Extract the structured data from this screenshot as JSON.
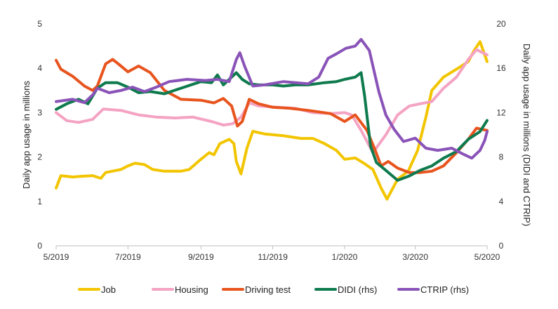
{
  "chart_data": {
    "type": "line",
    "xlabel": "",
    "ylabel": "Daily app usage in millions",
    "y2label": "Daily app usage in millions (DIDI and CTRIP)",
    "ylim": [
      0,
      5
    ],
    "y2lim": [
      0,
      20
    ],
    "xlim": [
      "2019-05-01",
      "2020-05-01"
    ],
    "yticks": [
      "0",
      "1",
      "2",
      "3",
      "4",
      "5"
    ],
    "y2ticks": [
      "0",
      "4",
      "8",
      "12",
      "16",
      "20"
    ],
    "xticks": [
      {
        "label": "5/2019",
        "date": "2019-05-01"
      },
      {
        "label": "7/2019",
        "date": "2019-07-01"
      },
      {
        "label": "9/2019",
        "date": "2019-09-01"
      },
      {
        "label": "11/2019",
        "date": "2019-11-01"
      },
      {
        "label": "1/2020",
        "date": "2020-01-01"
      },
      {
        "label": "3/2020",
        "date": "2020-03-01"
      },
      {
        "label": "5/2020",
        "date": "2020-05-01"
      }
    ],
    "legend_position": "bottom",
    "grid": false,
    "series": [
      {
        "name": "Job",
        "axis": "left",
        "color": "#F2C500",
        "points": [
          [
            "2019-05-01",
            1.3
          ],
          [
            "2019-05-05",
            1.58
          ],
          [
            "2019-05-15",
            1.55
          ],
          [
            "2019-05-25",
            1.57
          ],
          [
            "2019-06-01",
            1.58
          ],
          [
            "2019-06-08",
            1.52
          ],
          [
            "2019-06-12",
            1.65
          ],
          [
            "2019-06-25",
            1.72
          ],
          [
            "2019-07-01",
            1.8
          ],
          [
            "2019-07-07",
            1.86
          ],
          [
            "2019-07-15",
            1.83
          ],
          [
            "2019-07-22",
            1.72
          ],
          [
            "2019-08-01",
            1.68
          ],
          [
            "2019-08-15",
            1.68
          ],
          [
            "2019-08-22",
            1.72
          ],
          [
            "2019-09-01",
            1.95
          ],
          [
            "2019-09-08",
            2.1
          ],
          [
            "2019-09-12",
            2.05
          ],
          [
            "2019-09-17",
            2.3
          ],
          [
            "2019-09-25",
            2.4
          ],
          [
            "2019-09-29",
            2.3
          ],
          [
            "2019-10-01",
            1.9
          ],
          [
            "2019-10-05",
            1.62
          ],
          [
            "2019-10-10",
            2.2
          ],
          [
            "2019-10-15",
            2.58
          ],
          [
            "2019-10-25",
            2.52
          ],
          [
            "2019-11-10",
            2.48
          ],
          [
            "2019-11-25",
            2.42
          ],
          [
            "2019-12-05",
            2.42
          ],
          [
            "2019-12-15",
            2.3
          ],
          [
            "2019-12-25",
            2.15
          ],
          [
            "2020-01-01",
            1.95
          ],
          [
            "2020-01-10",
            1.98
          ],
          [
            "2020-01-18",
            1.85
          ],
          [
            "2020-01-25",
            1.72
          ],
          [
            "2020-02-01",
            1.3
          ],
          [
            "2020-02-06",
            1.05
          ],
          [
            "2020-02-15",
            1.5
          ],
          [
            "2020-02-24",
            1.68
          ],
          [
            "2020-03-03",
            2.15
          ],
          [
            "2020-03-10",
            2.9
          ],
          [
            "2020-03-15",
            3.5
          ],
          [
            "2020-03-25",
            3.8
          ],
          [
            "2020-04-05",
            3.98
          ],
          [
            "2020-04-15",
            4.15
          ],
          [
            "2020-04-20",
            4.4
          ],
          [
            "2020-04-25",
            4.6
          ],
          [
            "2020-05-01",
            4.15
          ]
        ]
      },
      {
        "name": "Housing",
        "axis": "left",
        "color": "#F4A3C2",
        "points": [
          [
            "2019-05-01",
            3.0
          ],
          [
            "2019-05-10",
            2.82
          ],
          [
            "2019-05-20",
            2.78
          ],
          [
            "2019-06-01",
            2.85
          ],
          [
            "2019-06-10",
            3.08
          ],
          [
            "2019-06-25",
            3.05
          ],
          [
            "2019-07-10",
            2.95
          ],
          [
            "2019-07-25",
            2.9
          ],
          [
            "2019-08-10",
            2.88
          ],
          [
            "2019-08-25",
            2.9
          ],
          [
            "2019-09-10",
            2.8
          ],
          [
            "2019-09-20",
            2.72
          ],
          [
            "2019-09-28",
            2.75
          ],
          [
            "2019-10-05",
            2.9
          ],
          [
            "2019-10-12",
            3.22
          ],
          [
            "2019-10-20",
            3.15
          ],
          [
            "2019-11-05",
            3.12
          ],
          [
            "2019-11-20",
            3.1
          ],
          [
            "2019-12-05",
            3.0
          ],
          [
            "2019-12-20",
            2.98
          ],
          [
            "2020-01-01",
            3.0
          ],
          [
            "2020-01-07",
            2.95
          ],
          [
            "2020-01-15",
            2.6
          ],
          [
            "2020-01-25",
            2.1
          ],
          [
            "2020-02-05",
            2.5
          ],
          [
            "2020-02-15",
            2.95
          ],
          [
            "2020-02-25",
            3.15
          ],
          [
            "2020-03-05",
            3.2
          ],
          [
            "2020-03-15",
            3.25
          ],
          [
            "2020-03-25",
            3.55
          ],
          [
            "2020-04-05",
            3.8
          ],
          [
            "2020-04-15",
            4.2
          ],
          [
            "2020-04-22",
            4.42
          ],
          [
            "2020-05-01",
            4.3
          ]
        ]
      },
      {
        "name": "Driving test",
        "axis": "left",
        "color": "#E8541E",
        "points": [
          [
            "2019-05-01",
            4.18
          ],
          [
            "2019-05-05",
            3.98
          ],
          [
            "2019-05-15",
            3.82
          ],
          [
            "2019-05-25",
            3.6
          ],
          [
            "2019-06-01",
            3.5
          ],
          [
            "2019-06-05",
            3.6
          ],
          [
            "2019-06-12",
            4.1
          ],
          [
            "2019-06-18",
            4.2
          ],
          [
            "2019-06-25",
            4.05
          ],
          [
            "2019-07-01",
            3.92
          ],
          [
            "2019-07-10",
            4.05
          ],
          [
            "2019-07-20",
            3.9
          ],
          [
            "2019-08-01",
            3.5
          ],
          [
            "2019-08-15",
            3.3
          ],
          [
            "2019-09-01",
            3.28
          ],
          [
            "2019-09-12",
            3.22
          ],
          [
            "2019-09-20",
            3.32
          ],
          [
            "2019-09-27",
            3.15
          ],
          [
            "2019-10-02",
            2.7
          ],
          [
            "2019-10-06",
            2.8
          ],
          [
            "2019-10-12",
            3.3
          ],
          [
            "2019-10-20",
            3.2
          ],
          [
            "2019-11-01",
            3.12
          ],
          [
            "2019-11-15",
            3.1
          ],
          [
            "2019-12-01",
            3.05
          ],
          [
            "2019-12-20",
            2.98
          ],
          [
            "2020-01-01",
            2.8
          ],
          [
            "2020-01-10",
            2.95
          ],
          [
            "2020-01-20",
            2.6
          ],
          [
            "2020-01-27",
            2.15
          ],
          [
            "2020-02-01",
            1.8
          ],
          [
            "2020-02-07",
            1.9
          ],
          [
            "2020-02-15",
            1.75
          ],
          [
            "2020-02-25",
            1.65
          ],
          [
            "2020-03-05",
            1.65
          ],
          [
            "2020-03-15",
            1.68
          ],
          [
            "2020-03-25",
            1.8
          ],
          [
            "2020-04-05",
            2.1
          ],
          [
            "2020-04-15",
            2.4
          ],
          [
            "2020-04-22",
            2.65
          ],
          [
            "2020-05-01",
            2.6
          ]
        ]
      },
      {
        "name": "DIDI (rhs)",
        "axis": "right",
        "color": "#0E7A4D",
        "points": [
          [
            "2019-05-01",
            12.3
          ],
          [
            "2019-05-10",
            12.8
          ],
          [
            "2019-05-20",
            13.2
          ],
          [
            "2019-05-28",
            12.8
          ],
          [
            "2019-06-05",
            14.2
          ],
          [
            "2019-06-12",
            14.7
          ],
          [
            "2019-06-22",
            14.7
          ],
          [
            "2019-07-01",
            14.3
          ],
          [
            "2019-07-10",
            13.8
          ],
          [
            "2019-07-20",
            13.9
          ],
          [
            "2019-08-01",
            13.7
          ],
          [
            "2019-08-15",
            14.2
          ],
          [
            "2019-09-01",
            14.8
          ],
          [
            "2019-09-10",
            14.7
          ],
          [
            "2019-09-15",
            15.4
          ],
          [
            "2019-09-20",
            14.5
          ],
          [
            "2019-09-25",
            15.0
          ],
          [
            "2019-10-01",
            15.6
          ],
          [
            "2019-10-06",
            15.0
          ],
          [
            "2019-10-12",
            14.6
          ],
          [
            "2019-10-20",
            14.5
          ],
          [
            "2019-11-01",
            14.5
          ],
          [
            "2019-11-10",
            14.4
          ],
          [
            "2019-11-20",
            14.5
          ],
          [
            "2019-12-01",
            14.5
          ],
          [
            "2019-12-15",
            14.7
          ],
          [
            "2019-12-25",
            14.8
          ],
          [
            "2020-01-01",
            15.0
          ],
          [
            "2020-01-10",
            15.2
          ],
          [
            "2020-01-15",
            15.6
          ],
          [
            "2020-01-18",
            13.5
          ],
          [
            "2020-01-23",
            9.0
          ],
          [
            "2020-01-28",
            7.5
          ],
          [
            "2020-02-05",
            6.8
          ],
          [
            "2020-02-15",
            5.9
          ],
          [
            "2020-02-25",
            6.3
          ],
          [
            "2020-03-05",
            6.8
          ],
          [
            "2020-03-15",
            7.2
          ],
          [
            "2020-03-25",
            7.9
          ],
          [
            "2020-04-05",
            8.5
          ],
          [
            "2020-04-15",
            9.6
          ],
          [
            "2020-04-25",
            10.3
          ],
          [
            "2020-05-01",
            11.3
          ]
        ]
      },
      {
        "name": "CTRIP (rhs)",
        "axis": "right",
        "color": "#8A53B8",
        "points": [
          [
            "2019-05-01",
            13.0
          ],
          [
            "2019-05-15",
            13.2
          ],
          [
            "2019-05-25",
            12.9
          ],
          [
            "2019-06-01",
            13.6
          ],
          [
            "2019-06-05",
            14.2
          ],
          [
            "2019-06-15",
            13.8
          ],
          [
            "2019-06-25",
            14.0
          ],
          [
            "2019-07-05",
            14.3
          ],
          [
            "2019-07-15",
            13.9
          ],
          [
            "2019-07-25",
            14.3
          ],
          [
            "2019-08-05",
            14.8
          ],
          [
            "2019-08-20",
            15.0
          ],
          [
            "2019-09-05",
            14.9
          ],
          [
            "2019-09-15",
            15.0
          ],
          [
            "2019-09-25",
            14.8
          ],
          [
            "2019-10-01",
            16.8
          ],
          [
            "2019-10-04",
            17.4
          ],
          [
            "2019-10-08",
            16.2
          ],
          [
            "2019-10-15",
            14.4
          ],
          [
            "2019-10-25",
            14.5
          ],
          [
            "2019-11-10",
            14.8
          ],
          [
            "2019-12-01",
            14.6
          ],
          [
            "2019-12-10",
            15.2
          ],
          [
            "2019-12-18",
            16.9
          ],
          [
            "2019-12-25",
            17.3
          ],
          [
            "2020-01-02",
            17.8
          ],
          [
            "2020-01-10",
            18.0
          ],
          [
            "2020-01-15",
            18.6
          ],
          [
            "2020-01-22",
            17.6
          ],
          [
            "2020-01-30",
            13.9
          ],
          [
            "2020-02-05",
            11.8
          ],
          [
            "2020-02-12",
            10.5
          ],
          [
            "2020-02-20",
            9.4
          ],
          [
            "2020-03-01",
            9.7
          ],
          [
            "2020-03-10",
            8.8
          ],
          [
            "2020-03-20",
            8.6
          ],
          [
            "2020-04-01",
            8.8
          ],
          [
            "2020-04-10",
            8.3
          ],
          [
            "2020-04-18",
            7.9
          ],
          [
            "2020-04-25",
            8.6
          ],
          [
            "2020-04-29",
            9.5
          ],
          [
            "2020-05-01",
            10.3
          ]
        ]
      }
    ]
  }
}
